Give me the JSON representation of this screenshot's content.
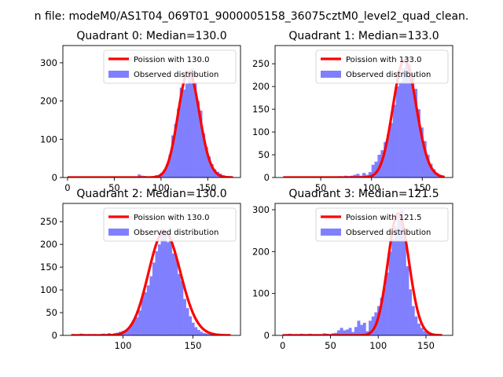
{
  "suptitle": "n file: modeM0/AS1T04_069T01_9000005158_36075cztM0_level2_quad_clean.",
  "colors": {
    "fit": "#ff0000",
    "hist": "#8080ff",
    "axes": "#000000",
    "background": "#ffffff"
  },
  "chart_data": [
    {
      "type": "bar",
      "title": "Quadrant 0: Median=130.0",
      "xlim": [
        -5,
        185
      ],
      "ylim": [
        0,
        345
      ],
      "xticks": [
        0,
        50,
        100,
        150
      ],
      "yticks": [
        0,
        100,
        200,
        300
      ],
      "legend": [
        "Poission with 130.0",
        "Observed distribution"
      ],
      "legend_position": "upper right",
      "poisson_mean": 130.0,
      "fit_x_range": [
        0,
        177
      ],
      "bin_width": 3,
      "bins": [
        [
          0,
          1
        ],
        [
          3,
          1
        ],
        [
          6,
          1
        ],
        [
          9,
          1
        ],
        [
          12,
          1
        ],
        [
          15,
          1
        ],
        [
          18,
          1
        ],
        [
          21,
          1
        ],
        [
          24,
          1
        ],
        [
          27,
          1
        ],
        [
          30,
          1
        ],
        [
          33,
          1
        ],
        [
          36,
          1
        ],
        [
          39,
          1
        ],
        [
          42,
          1
        ],
        [
          45,
          1
        ],
        [
          48,
          1
        ],
        [
          51,
          1
        ],
        [
          54,
          1
        ],
        [
          57,
          1
        ],
        [
          60,
          1
        ],
        [
          63,
          1
        ],
        [
          66,
          1
        ],
        [
          69,
          1
        ],
        [
          72,
          3
        ],
        [
          75,
          8
        ],
        [
          78,
          5
        ],
        [
          81,
          4
        ],
        [
          84,
          3
        ],
        [
          87,
          3
        ],
        [
          90,
          2
        ],
        [
          93,
          6
        ],
        [
          96,
          5
        ],
        [
          99,
          12
        ],
        [
          102,
          20
        ],
        [
          105,
          35
        ],
        [
          108,
          60
        ],
        [
          111,
          110
        ],
        [
          114,
          140
        ],
        [
          117,
          180
        ],
        [
          120,
          235
        ],
        [
          123,
          230
        ],
        [
          126,
          245
        ],
        [
          129,
          280
        ],
        [
          132,
          285
        ],
        [
          135,
          250
        ],
        [
          138,
          200
        ],
        [
          141,
          175
        ],
        [
          144,
          115
        ],
        [
          147,
          80
        ],
        [
          150,
          55
        ],
        [
          153,
          35
        ],
        [
          156,
          22
        ],
        [
          159,
          15
        ],
        [
          162,
          10
        ],
        [
          165,
          6
        ],
        [
          168,
          4
        ],
        [
          171,
          3
        ],
        [
          174,
          2
        ],
        [
          177,
          1
        ]
      ]
    },
    {
      "type": "bar",
      "title": "Quadrant 1: Median=133.0",
      "xlim": [
        5,
        180
      ],
      "ylim": [
        0,
        290
      ],
      "xticks": [
        50,
        100,
        150
      ],
      "yticks": [
        0,
        50,
        100,
        150,
        200,
        250
      ],
      "legend": [
        "Poission with 133.0",
        "Observed distribution"
      ],
      "legend_position": "upper right",
      "poisson_mean": 133.0,
      "fit_x_range": [
        13,
        172
      ],
      "bin_width": 3,
      "bins": [
        [
          13,
          1
        ],
        [
          16,
          1
        ],
        [
          19,
          1
        ],
        [
          22,
          1
        ],
        [
          25,
          1
        ],
        [
          28,
          1
        ],
        [
          31,
          1
        ],
        [
          34,
          1
        ],
        [
          37,
          1
        ],
        [
          40,
          1
        ],
        [
          43,
          1
        ],
        [
          46,
          1
        ],
        [
          49,
          1
        ],
        [
          52,
          1
        ],
        [
          55,
          1
        ],
        [
          58,
          1
        ],
        [
          61,
          1
        ],
        [
          64,
          2
        ],
        [
          67,
          3
        ],
        [
          70,
          2
        ],
        [
          73,
          4
        ],
        [
          76,
          3
        ],
        [
          79,
          4
        ],
        [
          82,
          6
        ],
        [
          85,
          8
        ],
        [
          88,
          4
        ],
        [
          91,
          10
        ],
        [
          94,
          6
        ],
        [
          97,
          12
        ],
        [
          100,
          28
        ],
        [
          103,
          35
        ],
        [
          106,
          50
        ],
        [
          109,
          60
        ],
        [
          112,
          78
        ],
        [
          115,
          95
        ],
        [
          118,
          120
        ],
        [
          121,
          160
        ],
        [
          124,
          200
        ],
        [
          127,
          210
        ],
        [
          130,
          240
        ],
        [
          133,
          265
        ],
        [
          136,
          248
        ],
        [
          139,
          230
        ],
        [
          142,
          195
        ],
        [
          145,
          150
        ],
        [
          148,
          110
        ],
        [
          151,
          80
        ],
        [
          154,
          50
        ],
        [
          157,
          30
        ],
        [
          160,
          18
        ],
        [
          163,
          10
        ],
        [
          166,
          5
        ],
        [
          169,
          2
        ]
      ]
    },
    {
      "type": "bar",
      "title": "Quadrant 2: Median=130.0",
      "xlim": [
        57,
        184
      ],
      "ylim": [
        0,
        290
      ],
      "xticks": [
        100,
        150
      ],
      "yticks": [
        0,
        50,
        100,
        150,
        200,
        250
      ],
      "legend": [
        "Poission with 130.0",
        "Observed distribution"
      ],
      "legend_position": "upper right",
      "poisson_mean": 130.0,
      "fit_x_range": [
        63,
        177
      ],
      "bin_width": 2,
      "bins": [
        [
          63,
          3
        ],
        [
          65,
          2
        ],
        [
          67,
          2
        ],
        [
          69,
          4
        ],
        [
          71,
          3
        ],
        [
          73,
          2
        ],
        [
          75,
          3
        ],
        [
          77,
          2
        ],
        [
          79,
          3
        ],
        [
          81,
          2
        ],
        [
          83,
          3
        ],
        [
          85,
          4
        ],
        [
          87,
          3
        ],
        [
          89,
          5
        ],
        [
          91,
          3
        ],
        [
          93,
          5
        ],
        [
          95,
          6
        ],
        [
          97,
          8
        ],
        [
          99,
          10
        ],
        [
          101,
          12
        ],
        [
          103,
          15
        ],
        [
          105,
          25
        ],
        [
          107,
          35
        ],
        [
          109,
          40
        ],
        [
          111,
          55
        ],
        [
          113,
          85
        ],
        [
          115,
          95
        ],
        [
          117,
          110
        ],
        [
          119,
          130
        ],
        [
          121,
          160
        ],
        [
          123,
          185
        ],
        [
          125,
          200
        ],
        [
          127,
          235
        ],
        [
          129,
          225
        ],
        [
          131,
          205
        ],
        [
          133,
          210
        ],
        [
          135,
          180
        ],
        [
          137,
          170
        ],
        [
          139,
          135
        ],
        [
          141,
          120
        ],
        [
          143,
          80
        ],
        [
          145,
          60
        ],
        [
          147,
          42
        ],
        [
          149,
          28
        ],
        [
          151,
          18
        ],
        [
          153,
          12
        ],
        [
          155,
          8
        ],
        [
          157,
          5
        ],
        [
          159,
          4
        ],
        [
          161,
          3
        ],
        [
          163,
          2
        ],
        [
          165,
          2
        ],
        [
          167,
          1
        ],
        [
          169,
          1
        ],
        [
          171,
          1
        ],
        [
          173,
          1
        ],
        [
          175,
          1
        ]
      ]
    },
    {
      "type": "bar",
      "title": "Quadrant 3: Median=121.5",
      "xlim": [
        -8,
        178
      ],
      "ylim": [
        0,
        315
      ],
      "xticks": [
        0,
        50,
        100,
        150
      ],
      "yticks": [
        0,
        100,
        200,
        300
      ],
      "legend": [
        "Poission with 121.5",
        "Observed distribution"
      ],
      "legend_position": "upper right",
      "poisson_mean": 121.5,
      "fit_x_range": [
        0,
        167
      ],
      "bin_width": 3,
      "bins": [
        [
          0,
          2
        ],
        [
          3,
          3
        ],
        [
          6,
          4
        ],
        [
          9,
          2
        ],
        [
          12,
          3
        ],
        [
          15,
          2
        ],
        [
          18,
          4
        ],
        [
          21,
          3
        ],
        [
          24,
          2
        ],
        [
          27,
          4
        ],
        [
          30,
          2
        ],
        [
          33,
          3
        ],
        [
          36,
          2
        ],
        [
          39,
          3
        ],
        [
          42,
          5
        ],
        [
          45,
          4
        ],
        [
          48,
          3
        ],
        [
          51,
          5
        ],
        [
          54,
          6
        ],
        [
          57,
          12
        ],
        [
          60,
          18
        ],
        [
          63,
          12
        ],
        [
          66,
          14
        ],
        [
          69,
          18
        ],
        [
          72,
          8
        ],
        [
          75,
          20
        ],
        [
          78,
          35
        ],
        [
          81,
          25
        ],
        [
          84,
          30
        ],
        [
          87,
          10
        ],
        [
          90,
          35
        ],
        [
          93,
          45
        ],
        [
          96,
          55
        ],
        [
          99,
          70
        ],
        [
          102,
          90
        ],
        [
          105,
          115
        ],
        [
          108,
          150
        ],
        [
          111,
          200
        ],
        [
          114,
          230
        ],
        [
          117,
          260
        ],
        [
          120,
          285
        ],
        [
          123,
          300
        ],
        [
          126,
          235
        ],
        [
          129,
          165
        ],
        [
          132,
          110
        ],
        [
          135,
          70
        ],
        [
          138,
          45
        ],
        [
          141,
          28
        ],
        [
          144,
          18
        ],
        [
          147,
          10
        ],
        [
          150,
          6
        ],
        [
          153,
          4
        ],
        [
          156,
          3
        ],
        [
          159,
          2
        ],
        [
          162,
          1
        ],
        [
          165,
          1
        ]
      ]
    }
  ]
}
